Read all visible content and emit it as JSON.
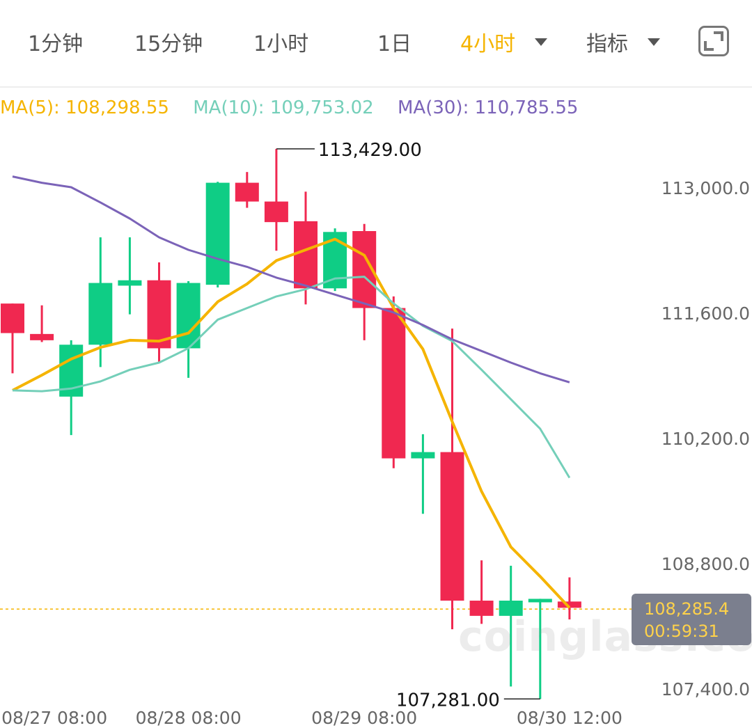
{
  "toolbar": {
    "tabs": [
      {
        "label": "1分钟",
        "active": false
      },
      {
        "label": "15分钟",
        "active": false
      },
      {
        "label": "1小时",
        "active": false
      },
      {
        "label": "1日",
        "active": false
      },
      {
        "label": "4小时",
        "active": true
      },
      {
        "label": "指标",
        "active": false
      }
    ],
    "fullscreen_icon": "fullscreen-icon"
  },
  "ma_legend": {
    "ma5": {
      "label": "MA(5):",
      "value": "108,298.55",
      "color": "#f5b400"
    },
    "ma10": {
      "label": "MA(10):",
      "value": "109,753.02",
      "color": "#74cfb9"
    },
    "ma30": {
      "label": "MA(30):",
      "value": "110,785.55",
      "color": "#7b63b8"
    }
  },
  "current_price": {
    "value": "108,285.4",
    "countdown": "00:59:31",
    "price": 108285.4
  },
  "watermark": "coinglass.com",
  "colors": {
    "up": "#0fcd85",
    "down": "#f02850"
  },
  "chart_data": {
    "type": "candlestick",
    "ylim": [
      107281,
      113429
    ],
    "y_ticks": [
      {
        "label": "113,000.0",
        "value": 113000
      },
      {
        "label": "111,600.0",
        "value": 111600
      },
      {
        "label": "110,200.0",
        "value": 110200
      },
      {
        "label": "108,800.0",
        "value": 108800
      },
      {
        "label": "107,400.0",
        "value": 107400
      }
    ],
    "x_ticks": [
      {
        "label": "08/27 08:00",
        "index": 1
      },
      {
        "label": "08/28 08:00",
        "index": 6
      },
      {
        "label": "08/29 08:00",
        "index": 12
      },
      {
        "label": "08/30 12:00",
        "index": 19
      }
    ],
    "annotations": {
      "high": {
        "label": "113,429.00",
        "value": 113429,
        "index": 9
      },
      "low": {
        "label": "107,281.00",
        "value": 107281,
        "index": 18
      }
    },
    "candles": [
      {
        "o": 111700,
        "h": 111700,
        "l": 110920,
        "c": 111370
      },
      {
        "o": 111360,
        "h": 111680,
        "l": 111270,
        "c": 111290
      },
      {
        "o": 110660,
        "h": 111290,
        "l": 110230,
        "c": 111240
      },
      {
        "o": 111240,
        "h": 112440,
        "l": 110990,
        "c": 111930
      },
      {
        "o": 111900,
        "h": 112440,
        "l": 111580,
        "c": 111960
      },
      {
        "o": 111960,
        "h": 112160,
        "l": 111050,
        "c": 111200
      },
      {
        "o": 111200,
        "h": 111950,
        "l": 110870,
        "c": 111930
      },
      {
        "o": 111910,
        "h": 113060,
        "l": 111880,
        "c": 113050
      },
      {
        "o": 113050,
        "h": 113170,
        "l": 112770,
        "c": 112840
      },
      {
        "o": 112840,
        "h": 113429,
        "l": 112290,
        "c": 112610
      },
      {
        "o": 112620,
        "h": 112950,
        "l": 111690,
        "c": 111870
      },
      {
        "o": 111870,
        "h": 112540,
        "l": 111840,
        "c": 112500
      },
      {
        "o": 112510,
        "h": 112590,
        "l": 111290,
        "c": 111650
      },
      {
        "o": 111650,
        "h": 111780,
        "l": 109860,
        "c": 109970
      },
      {
        "o": 109970,
        "h": 110240,
        "l": 109350,
        "c": 110040
      },
      {
        "o": 110040,
        "h": 111420,
        "l": 108060,
        "c": 108380
      },
      {
        "o": 108380,
        "h": 108830,
        "l": 108120,
        "c": 108210
      },
      {
        "o": 108210,
        "h": 108770,
        "l": 107420,
        "c": 108380
      },
      {
        "o": 108380,
        "h": 108400,
        "l": 107281,
        "c": 108400
      },
      {
        "o": 108370,
        "h": 108640,
        "l": 108170,
        "c": 108300
      }
    ],
    "series": [
      {
        "name": "MA(5)",
        "color": "#f5b400",
        "values": [
          110730,
          110900,
          111080,
          111210,
          111290,
          111280,
          111370,
          111720,
          111920,
          112180,
          112300,
          112420,
          112240,
          111650,
          111190,
          110380,
          109600,
          108980,
          108650,
          108300
        ]
      },
      {
        "name": "MA(10)",
        "color": "#74cfb9",
        "values": [
          110730,
          110720,
          110750,
          110830,
          110960,
          111040,
          111200,
          111520,
          111650,
          111780,
          111860,
          111980,
          112000,
          111700,
          111450,
          111280,
          110960,
          110630,
          110300,
          109753
        ]
      },
      {
        "name": "MA(30)",
        "color": "#7b63b8",
        "values": [
          113120,
          113050,
          113000,
          112830,
          112650,
          112440,
          112300,
          112200,
          112110,
          111990,
          111900,
          111800,
          111700,
          111600,
          111460,
          111300,
          111170,
          111040,
          110920,
          110820
        ]
      }
    ]
  }
}
